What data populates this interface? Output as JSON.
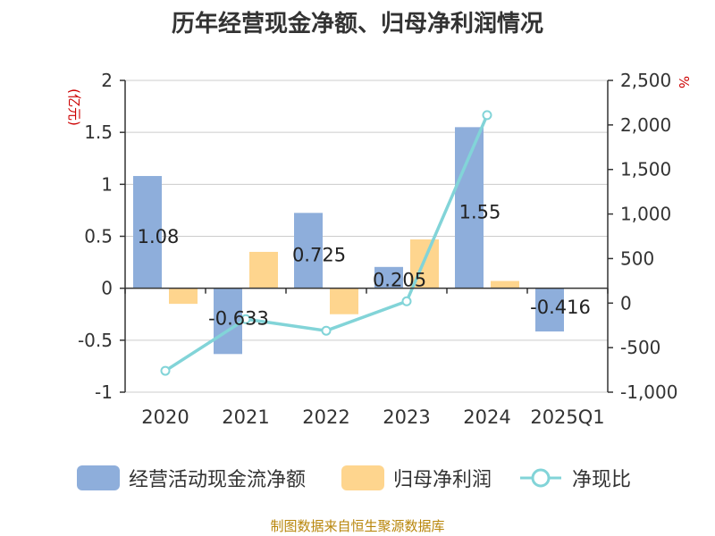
{
  "title": "历年经营现金净额、归母净利润情况",
  "source": "制图数据来自恒生聚源数据库",
  "colors": {
    "ocf": "#8eaedb",
    "profit": "#fed58e",
    "ratio": "#82d4d8",
    "unit": "#cc0000"
  },
  "chart_data": {
    "type": "bar",
    "categories": [
      "2020",
      "2021",
      "2022",
      "2023",
      "2024",
      "2025Q1"
    ],
    "left_unit": "(亿元)",
    "right_unit": "%",
    "ylim_left": [
      -1,
      2
    ],
    "yticks_left": [
      "-1",
      "-0.5",
      "0",
      "0.5",
      "1",
      "1.5",
      "2"
    ],
    "ylim_right": [
      -1000,
      2500
    ],
    "yticks_right": [
      "-1,000",
      "-500",
      "0",
      "500",
      "1,000",
      "1,500",
      "2,000",
      "2,500"
    ],
    "series": [
      {
        "name": "经营活动现金流净额",
        "type": "bar",
        "axis": "left",
        "values": [
          1.08,
          -0.633,
          0.725,
          0.205,
          1.55,
          -0.416
        ],
        "labels": [
          "1.08",
          "-0.633",
          "0.725",
          "0.205",
          "1.55",
          "-0.416"
        ]
      },
      {
        "name": "归母净利润",
        "type": "bar",
        "axis": "left",
        "values": [
          -0.15,
          0.35,
          -0.25,
          0.47,
          0.07,
          0.005
        ]
      },
      {
        "name": "净现比",
        "type": "line",
        "axis": "right",
        "values": [
          -760,
          -180,
          -310,
          20,
          2110,
          null
        ]
      }
    ],
    "legend_position": "bottom",
    "grid": true
  }
}
